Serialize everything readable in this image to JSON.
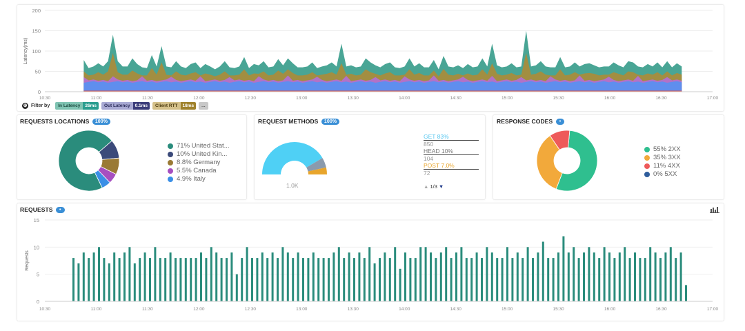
{
  "latency": {
    "ylabel": "Latency(ms)",
    "yticks": [
      "200",
      "150",
      "100",
      "50",
      "0"
    ],
    "xticks": [
      "10:30",
      "11:00",
      "11:30",
      "12:00",
      "12:30",
      "13:00",
      "13:30",
      "14:00",
      "14:30",
      "15:00",
      "15:30",
      "16:00",
      "16:30",
      "17:00"
    ],
    "colors": {
      "in_latency": "#3fa08f",
      "client_rtt": "#a88c3c",
      "out_latency": "#b46fd6",
      "base": "#5b8ff0"
    },
    "chart_data": {
      "type": "area",
      "x_range": [
        "10:30",
        "17:00"
      ],
      "ylim": [
        0,
        200
      ],
      "series": [
        {
          "name": "In Latency",
          "values": [
            78,
            58,
            62,
            70,
            62,
            75,
            140,
            75,
            62,
            62,
            82,
            68,
            60,
            58,
            90,
            62,
            112,
            62,
            60,
            75,
            62,
            58,
            68,
            72,
            58,
            68,
            62,
            55,
            62,
            75,
            60,
            58,
            62,
            85,
            58,
            68,
            65,
            75,
            60,
            62,
            80,
            65,
            82,
            70,
            60,
            60,
            62,
            72,
            58,
            62,
            65,
            72,
            62,
            118,
            62,
            65,
            60,
            62,
            82,
            72,
            65,
            60,
            68,
            72,
            60,
            58,
            62,
            82,
            62,
            70,
            60,
            60,
            78,
            55,
            88,
            62,
            60,
            65,
            58,
            68,
            60,
            62,
            82,
            62,
            118,
            65,
            60,
            62,
            70,
            60,
            62,
            150,
            62,
            65,
            75,
            62,
            60,
            60,
            85,
            60,
            62,
            72,
            62,
            68,
            70,
            65,
            60,
            62,
            62,
            72,
            65,
            60,
            75,
            72,
            62,
            60,
            68,
            62,
            72,
            60,
            75,
            60,
            70,
            62
          ]
        },
        {
          "name": "Client RTT",
          "values": [
            50,
            40,
            42,
            48,
            42,
            50,
            95,
            48,
            42,
            42,
            52,
            45,
            40,
            40,
            58,
            42,
            72,
            42,
            40,
            50,
            42,
            40,
            45,
            48,
            40,
            45,
            42,
            38,
            42,
            50,
            40,
            40,
            42,
            55,
            40,
            45,
            44,
            50,
            40,
            42,
            52,
            44,
            55,
            46,
            40,
            40,
            42,
            48,
            40,
            42,
            44,
            48,
            42,
            70,
            42,
            44,
            40,
            42,
            55,
            48,
            44,
            40,
            45,
            48,
            40,
            40,
            42,
            55,
            42,
            46,
            40,
            40,
            52,
            38,
            56,
            42,
            40,
            44,
            40,
            45,
            40,
            42,
            55,
            42,
            70,
            44,
            40,
            42,
            46,
            40,
            42,
            95,
            42,
            44,
            50,
            42,
            40,
            40,
            55,
            40,
            42,
            48,
            42,
            45,
            46,
            44,
            40,
            42,
            42,
            48,
            44,
            40,
            50,
            48,
            42,
            40,
            45,
            42,
            48,
            40,
            50,
            40,
            46,
            42
          ]
        },
        {
          "name": "Out Latency",
          "values": [
            2,
            2,
            2,
            2,
            2,
            2,
            3,
            2,
            2,
            2,
            2,
            2,
            2,
            2,
            2,
            2,
            2,
            2,
            2,
            2,
            2,
            2,
            2,
            2,
            2,
            2,
            2,
            2,
            2,
            2,
            2,
            2,
            2,
            2,
            2,
            2,
            2,
            2,
            2,
            2,
            2,
            2,
            2,
            2,
            2,
            2,
            2,
            2,
            2,
            2,
            2,
            2,
            2,
            2,
            2,
            2,
            2,
            2,
            2,
            2,
            2,
            2,
            2,
            2,
            2,
            2,
            2,
            2,
            2,
            2,
            2,
            2,
            2,
            2,
            2,
            2,
            2,
            2,
            2,
            2,
            2,
            2,
            2,
            2,
            2,
            2,
            2,
            2,
            2,
            2,
            2,
            2,
            2,
            2,
            2,
            2,
            2,
            2,
            2,
            2,
            2,
            2,
            2,
            2,
            2,
            2,
            2,
            2,
            2,
            2,
            2,
            2,
            2,
            2,
            2,
            2,
            2,
            2,
            2,
            2,
            2,
            2,
            2,
            2
          ]
        }
      ]
    }
  },
  "filter": {
    "label": "Filter by",
    "chips": [
      {
        "name": "In Latency",
        "value": "26ms"
      },
      {
        "name": "Out Latency",
        "value": "0.1ms"
      },
      {
        "name": "Client RTT",
        "value": "18ms"
      }
    ],
    "more": "..."
  },
  "locations": {
    "title": "REQUESTS LOCATIONS",
    "badge": "100%",
    "items": [
      {
        "label": "71% United Stat...",
        "color": "#2a8c7c"
      },
      {
        "label": "10% United Kin...",
        "color": "#3b4a7a"
      },
      {
        "label": "8.8% Germany",
        "color": "#9a7a35"
      },
      {
        "label": "5.5% Canada",
        "color": "#a64fc0"
      },
      {
        "label": "4.9% Italy",
        "color": "#3a8fe6"
      }
    ],
    "chart_data": {
      "type": "pie",
      "values": [
        71,
        10,
        8.8,
        5.5,
        4.9
      ],
      "labels": [
        "United Stat...",
        "United Kin...",
        "Germany",
        "Canada",
        "Italy"
      ]
    }
  },
  "methods": {
    "title": "REQUEST METHODS",
    "badge": "100%",
    "gauge_label": "1.0K",
    "items": [
      {
        "name": "GET 83%",
        "count": "850",
        "color": "#5bc8f0"
      },
      {
        "name": "HEAD 10%",
        "count": "104",
        "color": "#777777"
      },
      {
        "name": "POST 7.0%",
        "count": "72",
        "color": "#e8a52c"
      }
    ],
    "pager": "1/3",
    "colors": {
      "get": "#4fd0f5",
      "head": "#8a9aad",
      "post": "#e8a52c",
      "track": "#e8e8e8"
    },
    "chart_data": {
      "type": "pie",
      "values": [
        83,
        10,
        7
      ],
      "labels": [
        "GET",
        "HEAD",
        "POST"
      ]
    }
  },
  "codes": {
    "title": "RESPONSE CODES",
    "badge": "•",
    "items": [
      {
        "label": "55% 2XX",
        "color": "#2fbf8f"
      },
      {
        "label": "35% 3XX",
        "color": "#f2a93b"
      },
      {
        "label": "11% 4XX",
        "color": "#ee5a5a"
      },
      {
        "label": "0% 5XX",
        "color": "#2f5d9c"
      }
    ],
    "chart_data": {
      "type": "pie",
      "values": [
        55,
        35,
        11,
        0
      ],
      "labels": [
        "2XX",
        "3XX",
        "4XX",
        "5XX"
      ]
    }
  },
  "requests": {
    "title": "REQUESTS",
    "badge": "•",
    "ylabel": "Requests",
    "yticks": [
      "15",
      "10",
      "5",
      "0"
    ],
    "xticks": [
      "10:30",
      "11:00",
      "11:30",
      "12:00",
      "12:30",
      "13:00",
      "13:30",
      "14:00",
      "14:30",
      "15:00",
      "15:30",
      "16:00",
      "16:30",
      "17:00"
    ],
    "bar_color": "#2a8c7c",
    "chart_data": {
      "type": "bar",
      "ylim": [
        0,
        15
      ],
      "x_range": [
        "10:30",
        "17:00"
      ],
      "values": [
        8,
        7,
        9,
        8,
        9,
        10,
        8,
        7,
        9,
        8,
        9,
        10,
        7,
        8,
        9,
        8,
        10,
        8,
        8,
        9,
        8,
        8,
        8,
        8,
        8,
        9,
        8,
        10,
        9,
        8,
        8,
        9,
        5,
        8,
        10,
        8,
        8,
        9,
        8,
        9,
        8,
        10,
        9,
        8,
        9,
        8,
        8,
        9,
        8,
        8,
        8,
        9,
        10,
        8,
        9,
        8,
        9,
        8,
        10,
        7,
        8,
        9,
        8,
        10,
        6,
        9,
        8,
        8,
        10,
        10,
        9,
        8,
        9,
        10,
        8,
        9,
        10,
        8,
        8,
        9,
        8,
        10,
        9,
        8,
        8,
        10,
        8,
        9,
        8,
        10,
        8,
        9,
        11,
        8,
        8,
        9,
        12,
        9,
        10,
        8,
        9,
        10,
        9,
        8,
        10,
        9,
        8,
        9,
        10,
        8,
        9,
        8,
        8,
        10,
        9,
        8,
        9,
        10,
        8,
        9,
        3
      ]
    }
  }
}
